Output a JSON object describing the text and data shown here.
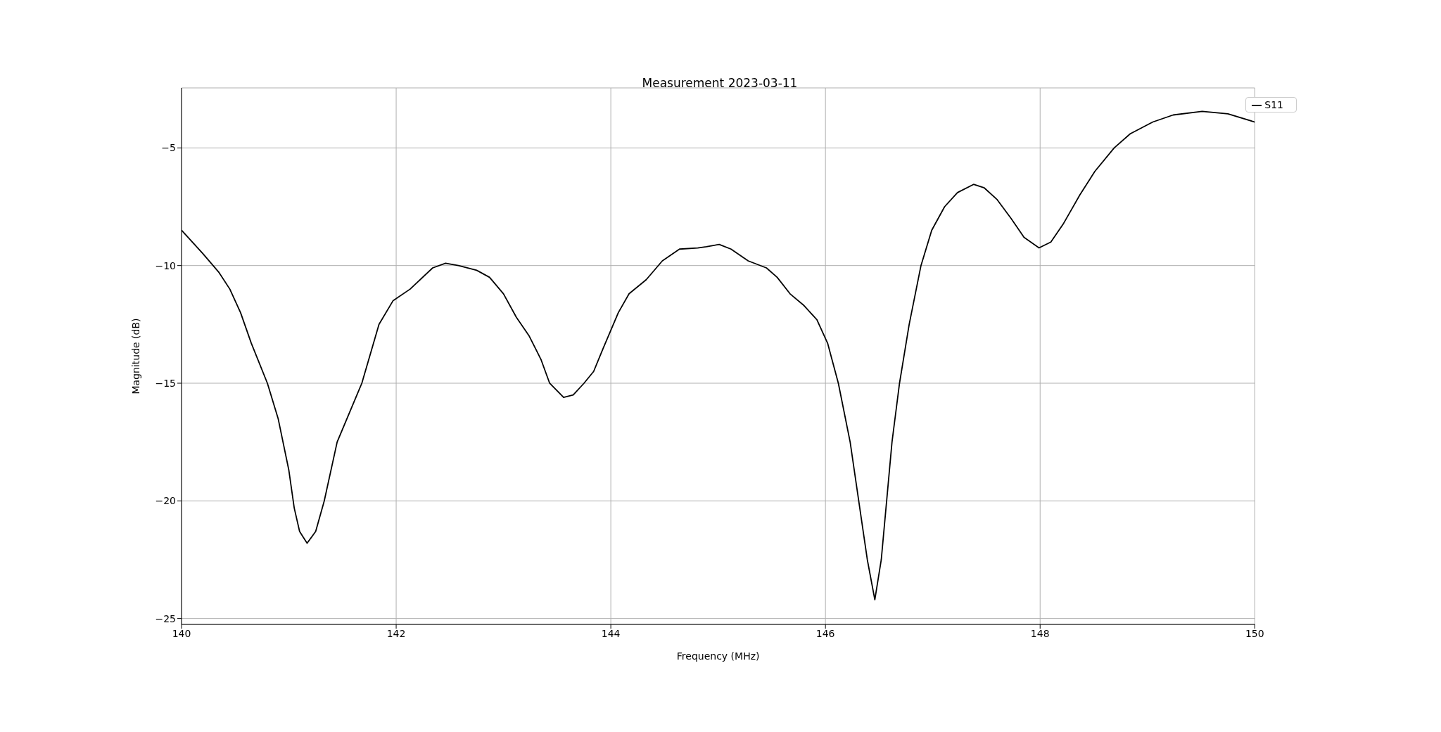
{
  "chart_data": {
    "type": "line",
    "title": "Measurement 2023-03-11",
    "xlabel": "Frequency (MHz)",
    "ylabel": "Magnitude (dB)",
    "xlim": [
      140,
      150
    ],
    "ylim": [
      -25.25,
      -2.45
    ],
    "xticks": [
      140,
      142,
      144,
      146,
      148,
      150
    ],
    "yticks": [
      -25,
      -20,
      -15,
      -10,
      -5
    ],
    "grid": true,
    "legend": "top right",
    "marker": "none",
    "line_style": "solid",
    "series": [
      {
        "name": "S11",
        "color": "#000000",
        "x": [
          140,
          140.2,
          140.35,
          140.45,
          140.55,
          140.65,
          140.8,
          140.9,
          141,
          141.05,
          141.1,
          141.17,
          141.25,
          141.33,
          141.45,
          141.68,
          141.84,
          141.97,
          142.13,
          142.34,
          142.46,
          142.58,
          142.75,
          142.87,
          143,
          143.12,
          143.24,
          143.35,
          143.43,
          143.56,
          143.65,
          143.75,
          143.84,
          143.93,
          144.07,
          144.17,
          144.33,
          144.48,
          144.64,
          144.81,
          144.89,
          145.01,
          145.12,
          145.28,
          145.45,
          145.55,
          145.67,
          145.8,
          145.92,
          146.02,
          146.12,
          146.23,
          146.31,
          146.39,
          146.46,
          146.52,
          146.57,
          146.62,
          146.69,
          146.78,
          146.89,
          146.99,
          147.11,
          147.23,
          147.38,
          147.48,
          147.6,
          147.73,
          147.85,
          147.99,
          148.1,
          148.22,
          148.37,
          148.51,
          148.69,
          148.84,
          149.05,
          149.24,
          149.51,
          149.75,
          150
        ],
        "values": [
          -8.5,
          -9.5,
          -10.3,
          -11,
          -12,
          -13.3,
          -15,
          -16.5,
          -18.7,
          -20.3,
          -21.3,
          -21.8,
          -21.3,
          -20,
          -17.5,
          -15,
          -12.5,
          -11.5,
          -11,
          -10.1,
          -9.9,
          -10,
          -10.2,
          -10.5,
          -11.2,
          -12.2,
          -13,
          -14,
          -15,
          -15.6,
          -15.5,
          -15,
          -14.5,
          -13.5,
          -12,
          -11.2,
          -10.6,
          -9.8,
          -9.3,
          -9.25,
          -9.2,
          -9.1,
          -9.3,
          -9.8,
          -10.1,
          -10.5,
          -11.2,
          -11.7,
          -12.3,
          -13.3,
          -15,
          -17.5,
          -20,
          -22.5,
          -24.2,
          -22.5,
          -20,
          -17.5,
          -15,
          -12.5,
          -10,
          -8.5,
          -7.5,
          -6.9,
          -6.55,
          -6.7,
          -7.2,
          -8,
          -8.8,
          -9.25,
          -9,
          -8.2,
          -7,
          -6,
          -5,
          -4.4,
          -3.9,
          -3.6,
          -3.45,
          -3.55,
          -3.9
        ]
      }
    ]
  }
}
